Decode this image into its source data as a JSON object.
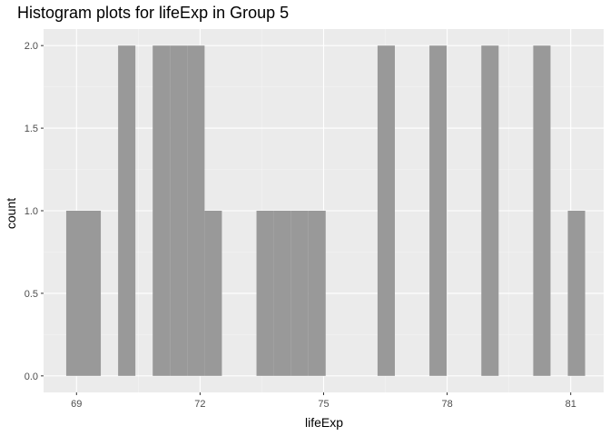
{
  "chart_data": {
    "type": "bar",
    "title": "Histogram plots for lifeExp in Group 5",
    "xlabel": "lifeExp",
    "ylabel": "count",
    "xlim": [
      68.2,
      81.8
    ],
    "ylim": [
      -0.1,
      2.1
    ],
    "x_ticks": [
      69,
      72,
      75,
      78,
      81
    ],
    "x_tick_labels": [
      "69",
      "72",
      "75",
      "78",
      "81"
    ],
    "y_ticks": [
      0.0,
      0.5,
      1.0,
      1.5,
      2.0
    ],
    "y_tick_labels": [
      "0.0",
      "0.5",
      "1.0",
      "1.5",
      "2.0"
    ],
    "grid": true,
    "bar_color": "#999999",
    "panel_color": "#ebebeb",
    "bins": [
      {
        "x0": 68.75,
        "x1": 69.17,
        "count": 1
      },
      {
        "x0": 69.17,
        "x1": 69.59,
        "count": 1
      },
      {
        "x0": 70.01,
        "x1": 70.43,
        "count": 2
      },
      {
        "x0": 70.85,
        "x1": 71.27,
        "count": 2
      },
      {
        "x0": 71.27,
        "x1": 71.69,
        "count": 2
      },
      {
        "x0": 71.69,
        "x1": 72.11,
        "count": 2
      },
      {
        "x0": 72.11,
        "x1": 72.53,
        "count": 1
      },
      {
        "x0": 73.37,
        "x1": 73.79,
        "count": 1
      },
      {
        "x0": 73.79,
        "x1": 74.21,
        "count": 1
      },
      {
        "x0": 74.21,
        "x1": 74.63,
        "count": 1
      },
      {
        "x0": 74.63,
        "x1": 75.05,
        "count": 1
      },
      {
        "x0": 76.31,
        "x1": 76.73,
        "count": 2
      },
      {
        "x0": 77.57,
        "x1": 77.99,
        "count": 2
      },
      {
        "x0": 78.83,
        "x1": 79.25,
        "count": 2
      },
      {
        "x0": 80.09,
        "x1": 80.51,
        "count": 2
      },
      {
        "x0": 80.93,
        "x1": 81.35,
        "count": 1
      }
    ]
  }
}
